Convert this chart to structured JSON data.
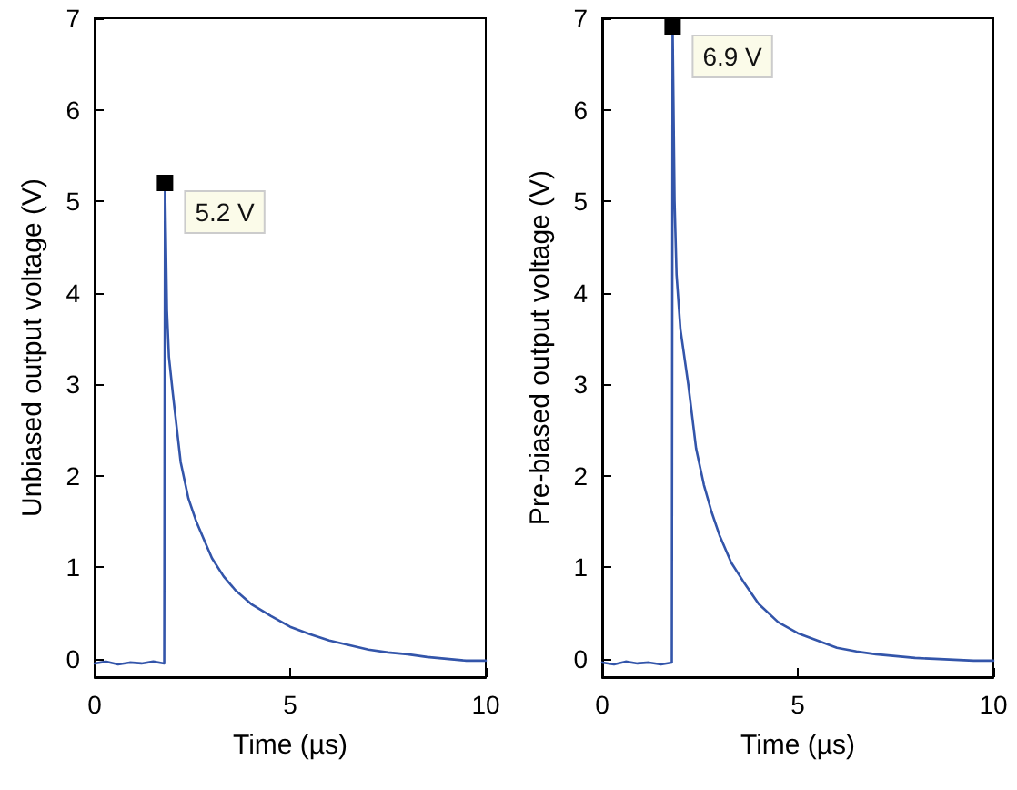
{
  "chart_data": [
    {
      "type": "line",
      "xlabel": "Time (µs)",
      "ylabel": "Unbiased output voltage (V)",
      "xlim": [
        0,
        10
      ],
      "xticks": [
        0,
        5,
        10
      ],
      "ylim": [
        -0.2,
        7
      ],
      "yticks": [
        0,
        1,
        2,
        3,
        4,
        5,
        6,
        7
      ],
      "grid": false,
      "marker": "none",
      "line_style": "solid",
      "x": [
        0,
        0.3,
        0.6,
        0.9,
        1.2,
        1.5,
        1.78,
        1.8,
        1.85,
        1.9,
        2.0,
        2.2,
        2.4,
        2.6,
        2.8,
        3.0,
        3.3,
        3.6,
        4.0,
        4.5,
        5,
        5.5,
        6,
        6.5,
        7,
        7.5,
        8,
        8.5,
        9,
        9.5,
        10
      ],
      "series": [
        {
          "color": "#3355aa",
          "values": [
            -0.05,
            -0.03,
            -0.06,
            -0.04,
            -0.05,
            -0.03,
            -0.05,
            5.2,
            3.8,
            3.3,
            2.9,
            2.15,
            1.75,
            1.5,
            1.3,
            1.1,
            0.9,
            0.75,
            0.6,
            0.47,
            0.35,
            0.27,
            0.2,
            0.15,
            0.1,
            0.07,
            0.05,
            0.02,
            0,
            -0.02,
            -0.02
          ]
        }
      ],
      "annotations": [
        {
          "text": "5.2 V",
          "x": 1.8,
          "y": 5.2
        }
      ]
    },
    {
      "type": "line",
      "xlabel": "Time (µs)",
      "ylabel": "Pre-biased output voltage (V)",
      "xlim": [
        0,
        10
      ],
      "xticks": [
        0,
        5,
        10
      ],
      "ylim": [
        -0.2,
        7
      ],
      "yticks": [
        0,
        1,
        2,
        3,
        4,
        5,
        6,
        7
      ],
      "grid": false,
      "marker": "none",
      "line_style": "solid",
      "x": [
        0,
        0.3,
        0.6,
        0.9,
        1.2,
        1.5,
        1.78,
        1.8,
        1.85,
        1.9,
        2.0,
        2.2,
        2.4,
        2.6,
        2.8,
        3.0,
        3.3,
        3.6,
        4.0,
        4.5,
        5,
        5.5,
        6,
        6.5,
        7,
        7.5,
        8,
        8.5,
        9,
        9.5,
        10
      ],
      "series": [
        {
          "color": "#3355aa",
          "values": [
            -0.04,
            -0.06,
            -0.03,
            -0.05,
            -0.04,
            -0.06,
            -0.04,
            6.9,
            5.0,
            4.2,
            3.6,
            3.0,
            2.3,
            1.9,
            1.6,
            1.35,
            1.05,
            0.85,
            0.6,
            0.4,
            0.28,
            0.2,
            0.12,
            0.08,
            0.05,
            0.03,
            0.01,
            0,
            -0.01,
            -0.02,
            -0.02
          ]
        }
      ],
      "annotations": [
        {
          "text": "6.9 V",
          "x": 1.8,
          "y": 6.9
        }
      ]
    }
  ]
}
